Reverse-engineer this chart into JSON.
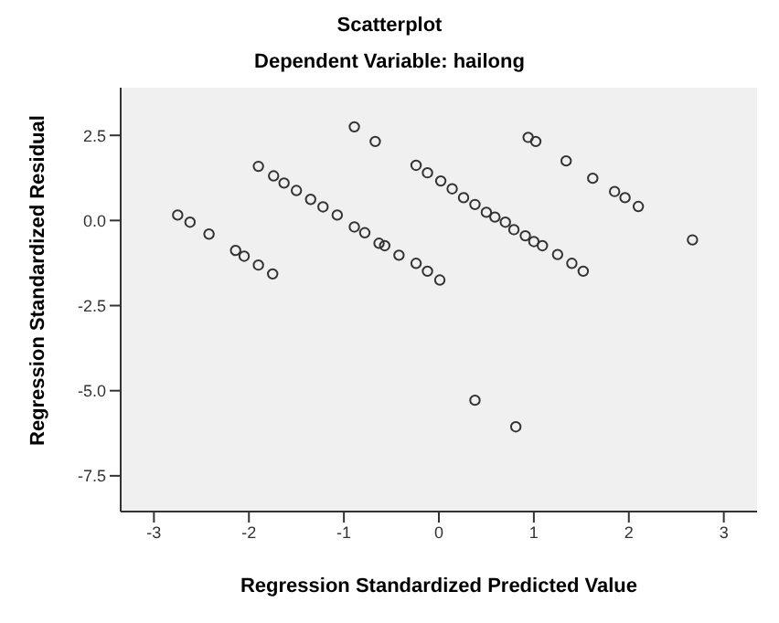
{
  "chart_data": {
    "type": "scatter",
    "title": "Scatterplot",
    "subtitle": "Dependent Variable: hailong",
    "xlabel": "Regression Standardized Predicted Value",
    "ylabel": "Regression Standardized Residual",
    "x": [
      -2.75,
      -2.62,
      -2.42,
      -2.14,
      -2.05,
      -1.9,
      -1.75,
      -1.9,
      -1.74,
      -1.63,
      -1.5,
      -1.35,
      -1.22,
      -1.07,
      -0.89,
      -0.78,
      -0.63,
      -0.57,
      -0.42,
      -0.24,
      -0.12,
      0.01,
      -0.89,
      -0.67,
      -0.24,
      -0.12,
      0.02,
      0.14,
      0.26,
      0.38,
      0.5,
      0.59,
      0.7,
      0.79,
      0.91,
      1.0,
      1.09,
      1.25,
      1.4,
      1.52,
      0.94,
      1.02,
      1.34,
      1.62,
      1.85,
      1.96,
      2.1,
      2.67,
      0.38,
      0.81
    ],
    "series": [
      {
        "color": "#333333",
        "values": [
          0.16,
          -0.05,
          -0.4,
          -0.88,
          -1.05,
          -1.31,
          -1.57,
          1.59,
          1.31,
          1.1,
          0.88,
          0.62,
          0.4,
          0.16,
          -0.19,
          -0.36,
          -0.67,
          -0.74,
          -1.02,
          -1.26,
          -1.49,
          -1.75,
          2.75,
          2.32,
          1.62,
          1.4,
          1.16,
          0.93,
          0.67,
          0.47,
          0.24,
          0.1,
          -0.05,
          -0.27,
          -0.45,
          -0.62,
          -0.74,
          -1.0,
          -1.26,
          -1.49,
          2.44,
          2.32,
          1.75,
          1.24,
          0.85,
          0.67,
          0.41,
          -0.57,
          -5.28,
          -6.06
        ]
      }
    ],
    "xlim": [
      -3.35,
      3.35
    ],
    "ylim": [
      -8.55,
      3.9
    ],
    "xticks": [
      -3,
      -2,
      -1,
      0,
      1,
      2,
      3
    ],
    "yticks": [
      {
        "value": 2.5,
        "label": "2.5"
      },
      {
        "value": 0,
        "label": "0.0"
      },
      {
        "value": -2.5,
        "label": "-2.5"
      },
      {
        "value": -5,
        "label": "-5.0"
      },
      {
        "value": -7.5,
        "label": "-7.5"
      }
    ],
    "marker": "circle",
    "grid": false,
    "legend": false
  }
}
